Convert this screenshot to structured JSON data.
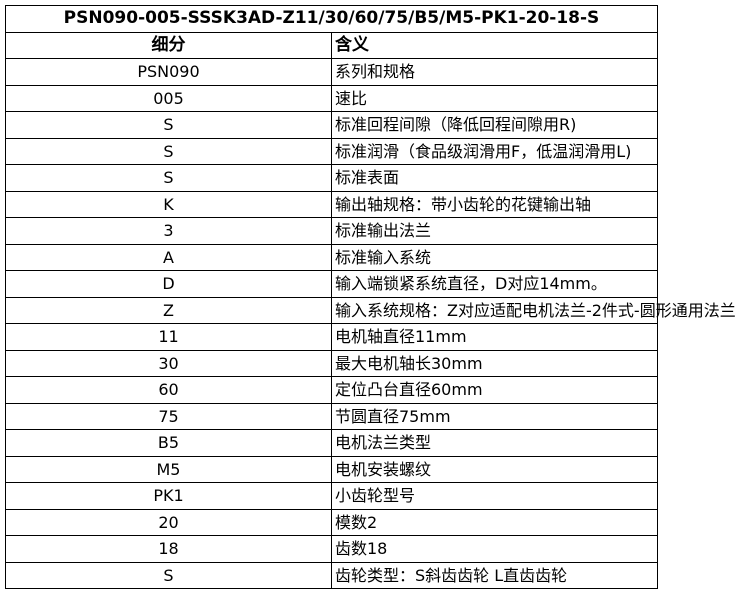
{
  "title": "PSN090-005-SSSK3AD-Z11/30/60/75/B5/M5-PK1-20-18-S",
  "headers": {
    "code": "细分",
    "meaning": "含义"
  },
  "rows": [
    {
      "code": "PSN090",
      "meaning": "系列和规格"
    },
    {
      "code": "005",
      "meaning": "速比"
    },
    {
      "code": "S",
      "meaning": "标准回程间隙（降低回程间隙用R)"
    },
    {
      "code": "S",
      "meaning": "标准润滑（食品级润滑用F，低温润滑用L)"
    },
    {
      "code": "S",
      "meaning": "标准表面"
    },
    {
      "code": "K",
      "meaning": "输出轴规格：带小齿轮的花键输出轴"
    },
    {
      "code": "3",
      "meaning": "标准输出法兰"
    },
    {
      "code": "A",
      "meaning": "标准输入系统"
    },
    {
      "code": "D",
      "meaning": "输入端锁紧系统直径，D对应14mm。"
    },
    {
      "code": "Z",
      "meaning": "输入系统规格：Z对应适配电机法兰-2件式-圆形通用法兰"
    },
    {
      "code": "11",
      "meaning": "电机轴直径11mm"
    },
    {
      "code": "30",
      "meaning": "最大电机轴长30mm"
    },
    {
      "code": "60",
      "meaning": "定位凸台直径60mm"
    },
    {
      "code": "75",
      "meaning": "节圆直径75mm"
    },
    {
      "code": "B5",
      "meaning": "电机法兰类型"
    },
    {
      "code": "M5",
      "meaning": "电机安装螺纹"
    },
    {
      "code": "PK1",
      "meaning": "小齿轮型号"
    },
    {
      "code": "20",
      "meaning": "模数2"
    },
    {
      "code": "18",
      "meaning": "齿数18"
    },
    {
      "code": "S",
      "meaning": "齿轮类型：S斜齿齿轮 L直齿齿轮"
    }
  ]
}
